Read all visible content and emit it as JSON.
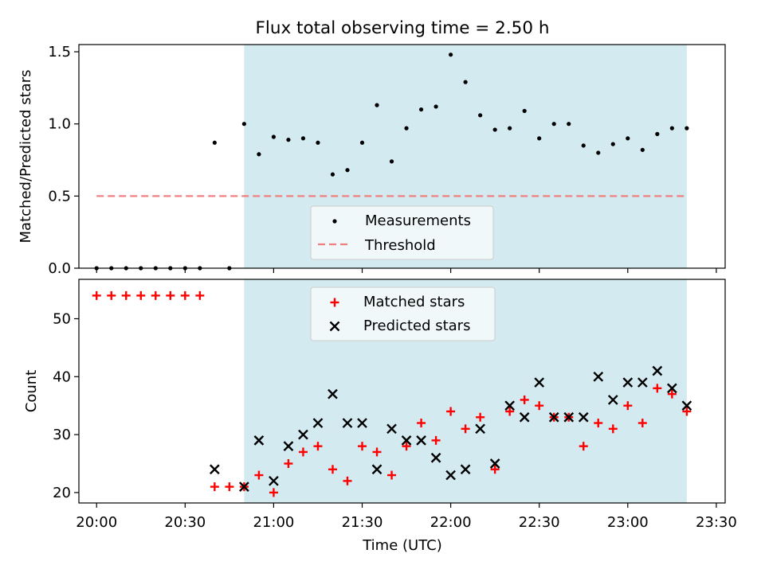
{
  "figure": {
    "title": "Flux total observing time = 2.50 h",
    "xlabel": "Time (UTC)"
  },
  "colors": {
    "observing_span": "#d4eaf1",
    "threshold": "#f08080",
    "matched": "#ff0000",
    "predicted": "#000000",
    "measurements": "#000000"
  },
  "chart_data": [
    {
      "type": "scatter",
      "panel": "top",
      "ylabel": "Matched/Predicted stars",
      "xlim": [
        "19:54",
        "23:33"
      ],
      "ylim": [
        0,
        1.55
      ],
      "x_ticks": [
        "20:00",
        "20:30",
        "21:00",
        "21:30",
        "22:00",
        "22:30",
        "23:00",
        "23:30"
      ],
      "y_ticks": [
        "0.0",
        "0.5",
        "1.0",
        "1.5"
      ],
      "shaded_span": [
        "20:50",
        "23:20"
      ],
      "legend": {
        "placement": "lower-center",
        "entries": [
          "Measurements",
          "Threshold"
        ]
      },
      "series": [
        {
          "name": "Measurements",
          "marker": "dot",
          "points": [
            [
              "20:00",
              0
            ],
            [
              "20:05",
              0
            ],
            [
              "20:10",
              0
            ],
            [
              "20:15",
              0
            ],
            [
              "20:20",
              0
            ],
            [
              "20:25",
              0
            ],
            [
              "20:30",
              0
            ],
            [
              "20:35",
              0
            ],
            [
              "20:40",
              0.87
            ],
            [
              "20:45",
              0
            ],
            [
              "20:50",
              1.0
            ],
            [
              "20:55",
              0.79
            ],
            [
              "21:00",
              0.91
            ],
            [
              "21:05",
              0.89
            ],
            [
              "21:10",
              0.9
            ],
            [
              "21:15",
              0.87
            ],
            [
              "21:20",
              0.65
            ],
            [
              "21:25",
              0.68
            ],
            [
              "21:30",
              0.87
            ],
            [
              "21:35",
              1.13
            ],
            [
              "21:40",
              0.74
            ],
            [
              "21:45",
              0.97
            ],
            [
              "21:50",
              1.1
            ],
            [
              "21:55",
              1.12
            ],
            [
              "22:00",
              1.48
            ],
            [
              "22:05",
              1.29
            ],
            [
              "22:10",
              1.06
            ],
            [
              "22:15",
              0.96
            ],
            [
              "22:20",
              0.97
            ],
            [
              "22:25",
              1.09
            ],
            [
              "22:30",
              0.9
            ],
            [
              "22:35",
              1.0
            ],
            [
              "22:40",
              1.0
            ],
            [
              "22:45",
              0.85
            ],
            [
              "22:50",
              0.8
            ],
            [
              "22:55",
              0.86
            ],
            [
              "23:00",
              0.9
            ],
            [
              "23:05",
              0.82
            ],
            [
              "23:10",
              0.93
            ],
            [
              "23:15",
              0.97
            ],
            [
              "23:20",
              0.97
            ]
          ]
        },
        {
          "name": "Threshold",
          "style": "dashed-line",
          "points": [
            [
              "20:00",
              0.5
            ],
            [
              "23:20",
              0.5
            ]
          ]
        }
      ]
    },
    {
      "type": "scatter",
      "panel": "bottom",
      "ylabel": "Count",
      "xlim": [
        "19:54",
        "23:33"
      ],
      "ylim": [
        18.2,
        56.8
      ],
      "x_ticks": [
        "20:00",
        "20:30",
        "21:00",
        "21:30",
        "22:00",
        "22:30",
        "23:00",
        "23:30"
      ],
      "y_ticks": [
        "20",
        "30",
        "40",
        "50"
      ],
      "shaded_span": [
        "20:50",
        "23:20"
      ],
      "legend": {
        "placement": "upper-center",
        "entries": [
          "Matched stars",
          "Predicted stars"
        ]
      },
      "series": [
        {
          "name": "Matched stars",
          "marker": "plus",
          "points": [
            [
              "20:00",
              54
            ],
            [
              "20:05",
              54
            ],
            [
              "20:10",
              54
            ],
            [
              "20:15",
              54
            ],
            [
              "20:20",
              54
            ],
            [
              "20:25",
              54
            ],
            [
              "20:30",
              54
            ],
            [
              "20:35",
              54
            ],
            [
              "20:40",
              21
            ],
            [
              "20:45",
              21
            ],
            [
              "20:50",
              21
            ],
            [
              "20:55",
              23
            ],
            [
              "21:00",
              20
            ],
            [
              "21:05",
              25
            ],
            [
              "21:10",
              27
            ],
            [
              "21:15",
              28
            ],
            [
              "21:20",
              24
            ],
            [
              "21:25",
              22
            ],
            [
              "21:30",
              28
            ],
            [
              "21:35",
              27
            ],
            [
              "21:40",
              23
            ],
            [
              "21:45",
              28
            ],
            [
              "21:50",
              32
            ],
            [
              "21:55",
              29
            ],
            [
              "22:00",
              34
            ],
            [
              "22:05",
              31
            ],
            [
              "22:10",
              33
            ],
            [
              "22:15",
              24
            ],
            [
              "22:20",
              34
            ],
            [
              "22:25",
              36
            ],
            [
              "22:30",
              35
            ],
            [
              "22:35",
              33
            ],
            [
              "22:40",
              33
            ],
            [
              "22:45",
              28
            ],
            [
              "22:50",
              32
            ],
            [
              "22:55",
              31
            ],
            [
              "23:00",
              35
            ],
            [
              "23:05",
              32
            ],
            [
              "23:10",
              38
            ],
            [
              "23:15",
              37
            ],
            [
              "23:20",
              34
            ]
          ]
        },
        {
          "name": "Predicted stars",
          "marker": "x",
          "points": [
            [
              "20:40",
              24
            ],
            [
              "20:50",
              21
            ],
            [
              "20:55",
              29
            ],
            [
              "21:00",
              22
            ],
            [
              "21:05",
              28
            ],
            [
              "21:10",
              30
            ],
            [
              "21:15",
              32
            ],
            [
              "21:20",
              37
            ],
            [
              "21:25",
              32
            ],
            [
              "21:30",
              32
            ],
            [
              "21:35",
              24
            ],
            [
              "21:40",
              31
            ],
            [
              "21:45",
              29
            ],
            [
              "21:50",
              29
            ],
            [
              "21:55",
              26
            ],
            [
              "22:00",
              23
            ],
            [
              "22:05",
              24
            ],
            [
              "22:10",
              31
            ],
            [
              "22:15",
              25
            ],
            [
              "22:20",
              35
            ],
            [
              "22:25",
              33
            ],
            [
              "22:30",
              39
            ],
            [
              "22:35",
              33
            ],
            [
              "22:40",
              33
            ],
            [
              "22:45",
              33
            ],
            [
              "22:50",
              40
            ],
            [
              "22:55",
              36
            ],
            [
              "23:00",
              39
            ],
            [
              "23:05",
              39
            ],
            [
              "23:10",
              41
            ],
            [
              "23:15",
              38
            ],
            [
              "23:20",
              35
            ]
          ]
        }
      ]
    }
  ]
}
